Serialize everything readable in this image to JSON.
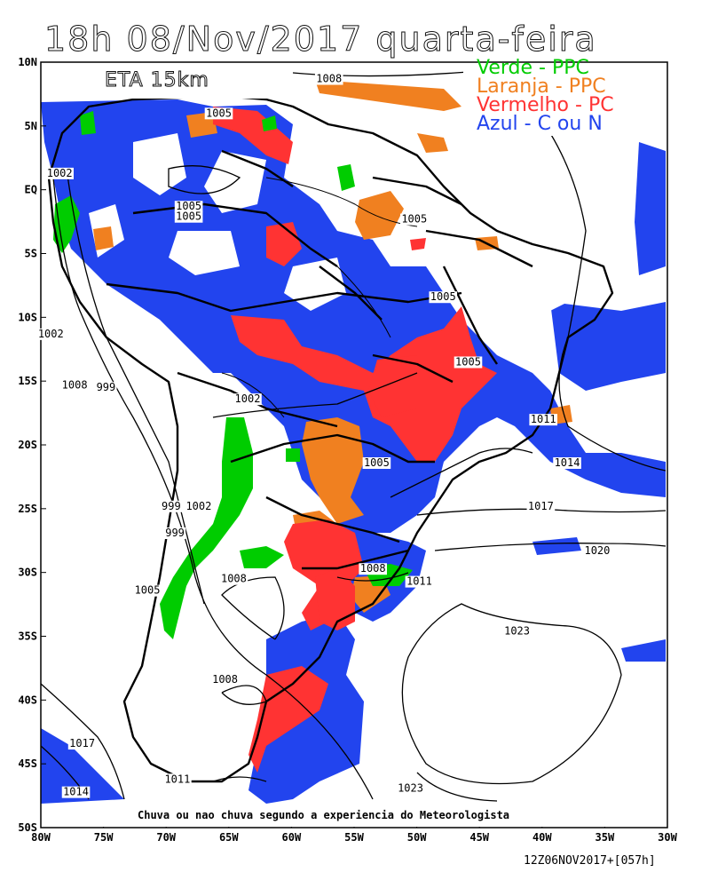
{
  "title": "18h 08/Nov/2017 quarta-feira",
  "model_label": "ETA 15km",
  "legend": [
    {
      "label": "Verde - PPC",
      "color": "#00cc00"
    },
    {
      "label": "Laranja - PPC",
      "color": "#f08020"
    },
    {
      "label": "Vermelho - PC",
      "color": "#ff3333"
    },
    {
      "label": "Azul - C ou N",
      "color": "#2244ee"
    }
  ],
  "caption": "Chuva ou nao chuva segundo a experiencia do Meteorologista",
  "run_info": "12Z06NOV2017+[057h]",
  "lat_ticks": [
    "10N",
    "5N",
    "EQ",
    "5S",
    "10S",
    "15S",
    "20S",
    "25S",
    "30S",
    "35S",
    "40S",
    "45S",
    "50S"
  ],
  "lon_ticks": [
    "80W",
    "75W",
    "70W",
    "65W",
    "60W",
    "55W",
    "50W",
    "45W",
    "40W",
    "35W",
    "30W"
  ],
  "isobars": [
    {
      "label": "1008",
      "lon": -57,
      "lat": 8.5
    },
    {
      "label": "1005",
      "lon": -65.8,
      "lat": 5.8
    },
    {
      "label": "1002",
      "lon": -78.5,
      "lat": 1.1
    },
    {
      "label": "1005",
      "lon": -68.2,
      "lat": -1.5
    },
    {
      "label": "1005",
      "lon": -68.2,
      "lat": -2.3
    },
    {
      "label": "1005",
      "lon": -50.2,
      "lat": -2.5
    },
    {
      "label": "1005",
      "lon": -47.9,
      "lat": -8.6
    },
    {
      "label": "1002",
      "lon": -79.2,
      "lat": -11.5
    },
    {
      "label": "1005",
      "lon": -45.9,
      "lat": -13.7
    },
    {
      "label": "1008",
      "lon": -77.3,
      "lat": -15.5
    },
    {
      "label": "999",
      "lon": -74.8,
      "lat": -15.7
    },
    {
      "label": "1002",
      "lon": -63.5,
      "lat": -16.6
    },
    {
      "label": "1011",
      "lon": -39.9,
      "lat": -18.2
    },
    {
      "label": "1005",
      "lon": -53.2,
      "lat": -21.6
    },
    {
      "label": "1014",
      "lon": -38,
      "lat": -21.6
    },
    {
      "label": "999",
      "lon": -69.6,
      "lat": -25.0
    },
    {
      "label": "1002",
      "lon": -67.4,
      "lat": -25.0
    },
    {
      "label": "1017",
      "lon": -40.1,
      "lat": -25.0
    },
    {
      "label": "1020",
      "lon": -35.6,
      "lat": -28.5
    },
    {
      "label": "999",
      "lon": -69.3,
      "lat": -27.1
    },
    {
      "label": "1008",
      "lon": -53.5,
      "lat": -29.9
    },
    {
      "label": "1011",
      "lon": -49.8,
      "lat": -30.9
    },
    {
      "label": "1005",
      "lon": -71.5,
      "lat": -31.6
    },
    {
      "label": "1008",
      "lon": -64.6,
      "lat": -30.7
    },
    {
      "label": "1023",
      "lon": -42,
      "lat": -34.8
    },
    {
      "label": "1008",
      "lon": -65.3,
      "lat": -38.6
    },
    {
      "label": "1017",
      "lon": -76.7,
      "lat": -43.6
    },
    {
      "label": "1011",
      "lon": -69.1,
      "lat": -46.4
    },
    {
      "label": "1014",
      "lon": -77.2,
      "lat": -47.4
    },
    {
      "label": "1023",
      "lon": -50.5,
      "lat": -47.1
    }
  ]
}
